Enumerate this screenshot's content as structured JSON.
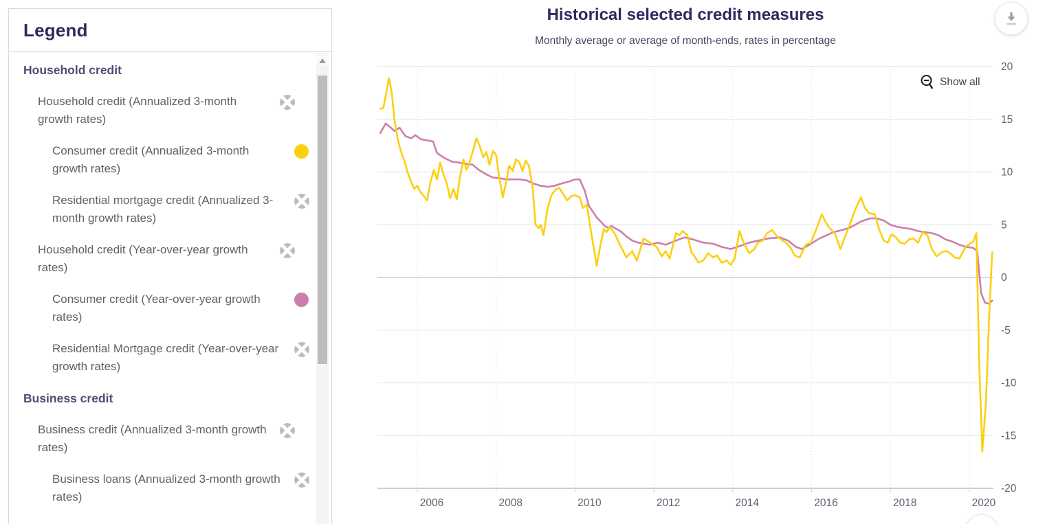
{
  "legend": {
    "title": "Legend",
    "groups": [
      {
        "header": "Household credit",
        "items": [
          {
            "label": "Household credit (Annualized 3-month growth rates)",
            "level": 1,
            "marker": "hidden-series-icon"
          },
          {
            "label": "Consumer credit (Annualized 3-month growth rates)",
            "level": 2,
            "marker": "yellow-dot"
          },
          {
            "label": "Residential mortgage credit (Annualized 3-month growth rates)",
            "level": 2,
            "marker": "hidden-series-icon"
          },
          {
            "label": "Household credit (Year-over-year growth rates)",
            "level": 1,
            "marker": "hidden-series-icon"
          },
          {
            "label": "Consumer credit (Year-over-year growth rates)",
            "level": 2,
            "marker": "pink-dot"
          },
          {
            "label": "Residential Mortgage credit (Year-over-year growth rates)",
            "level": 2,
            "marker": "hidden-series-icon"
          }
        ]
      },
      {
        "header": "Business credit",
        "items": [
          {
            "label": "Business credit (Annualized 3-month growth rates)",
            "level": 1,
            "marker": "hidden-series-icon"
          },
          {
            "label": "Business loans (Annualized 3-month growth rates)",
            "level": 2,
            "marker": "hidden-series-icon"
          }
        ]
      }
    ]
  },
  "chart": {
    "title": "Historical selected credit measures",
    "subtitle": "Monthly average or average of month-ends, rates in percentage",
    "show_all_label": "Show all"
  },
  "colors": {
    "yellow": "#FCD00E",
    "pink": "#CC7FAC",
    "hidden_marker": "#B7BEBE",
    "title_navy": "#2D2A5E",
    "axis_text": "#5A6570",
    "grid": "#E8E8E8",
    "grid_dotted": "#DCDCDC",
    "zero_line": "#C4C4C4",
    "axis_line": "#CFCFCF"
  },
  "chart_data": {
    "type": "line",
    "title": "Historical selected credit measures",
    "subtitle": "Monthly average or average of month-ends, rates in percentage",
    "ylabel": "rates in percentage",
    "x_axis": {
      "range": [
        2004.99,
        2020.62
      ],
      "tick_years": [
        2006,
        2008,
        2010,
        2012,
        2014,
        2016,
        2018,
        2020
      ],
      "grid": "dotted"
    },
    "y_axis": {
      "range": [
        -20,
        20
      ],
      "ticks": [
        20,
        15,
        10,
        5,
        0,
        -5,
        -10,
        -15,
        -20
      ],
      "grid": "solid",
      "labels_side": "right"
    },
    "legend_position": "external-left-panel",
    "series": [
      {
        "name": "Consumer credit (Year-over-year growth rates)",
        "color_key": "pink",
        "points": [
          [
            2005.06,
            13.7
          ],
          [
            2005.2,
            14.6
          ],
          [
            2005.3,
            14.3
          ],
          [
            2005.42,
            13.9
          ],
          [
            2005.55,
            14.2
          ],
          [
            2005.7,
            13.4
          ],
          [
            2005.85,
            13.2
          ],
          [
            2005.95,
            13.5
          ],
          [
            2006.1,
            13.1
          ],
          [
            2006.25,
            13.0
          ],
          [
            2006.4,
            12.9
          ],
          [
            2006.5,
            11.8
          ],
          [
            2006.7,
            11.3
          ],
          [
            2006.87,
            11.0
          ],
          [
            2007.04,
            10.9
          ],
          [
            2007.2,
            10.8
          ],
          [
            2007.4,
            10.7
          ],
          [
            2007.56,
            10.2
          ],
          [
            2007.74,
            9.8
          ],
          [
            2007.9,
            9.5
          ],
          [
            2008.1,
            9.4
          ],
          [
            2008.26,
            9.3
          ],
          [
            2008.45,
            9.3
          ],
          [
            2008.6,
            9.3
          ],
          [
            2008.78,
            9.2
          ],
          [
            2008.95,
            8.9
          ],
          [
            2009.13,
            8.7
          ],
          [
            2009.3,
            8.6
          ],
          [
            2009.48,
            8.7
          ],
          [
            2009.65,
            8.9
          ],
          [
            2009.85,
            9.1
          ],
          [
            2010.0,
            9.3
          ],
          [
            2010.12,
            9.3
          ],
          [
            2010.25,
            8.2
          ],
          [
            2010.35,
            6.8
          ],
          [
            2010.55,
            5.7
          ],
          [
            2010.75,
            4.9
          ],
          [
            2010.85,
            4.7
          ],
          [
            2010.92,
            4.9
          ],
          [
            2011.0,
            4.7
          ],
          [
            2011.15,
            4.4
          ],
          [
            2011.3,
            3.9
          ],
          [
            2011.45,
            3.5
          ],
          [
            2011.6,
            3.3
          ],
          [
            2011.75,
            3.2
          ],
          [
            2011.9,
            3.1
          ],
          [
            2012.1,
            3.3
          ],
          [
            2012.3,
            3.1
          ],
          [
            2012.56,
            3.5
          ],
          [
            2012.78,
            3.8
          ],
          [
            2013.0,
            3.6
          ],
          [
            2013.25,
            3.3
          ],
          [
            2013.5,
            3.2
          ],
          [
            2013.72,
            2.9
          ],
          [
            2013.95,
            2.7
          ],
          [
            2014.2,
            3.0
          ],
          [
            2014.42,
            3.3
          ],
          [
            2014.65,
            3.5
          ],
          [
            2014.9,
            3.7
          ],
          [
            2015.2,
            3.8
          ],
          [
            2015.4,
            3.5
          ],
          [
            2015.6,
            2.9
          ],
          [
            2015.75,
            2.7
          ],
          [
            2015.9,
            3.0
          ],
          [
            2016.2,
            3.7
          ],
          [
            2016.56,
            4.3
          ],
          [
            2016.78,
            4.5
          ],
          [
            2016.96,
            4.7
          ],
          [
            2017.25,
            5.3
          ],
          [
            2017.48,
            5.6
          ],
          [
            2017.66,
            5.6
          ],
          [
            2017.83,
            5.4
          ],
          [
            2018.0,
            5.0
          ],
          [
            2018.17,
            4.8
          ],
          [
            2018.35,
            4.7
          ],
          [
            2018.52,
            4.6
          ],
          [
            2018.7,
            4.4
          ],
          [
            2018.87,
            4.3
          ],
          [
            2019.05,
            4.2
          ],
          [
            2019.22,
            4.0
          ],
          [
            2019.4,
            3.6
          ],
          [
            2019.57,
            3.4
          ],
          [
            2019.75,
            3.1
          ],
          [
            2019.92,
            2.9
          ],
          [
            2020.1,
            2.8
          ],
          [
            2020.2,
            2.5
          ],
          [
            2020.3,
            -1.5
          ],
          [
            2020.4,
            -2.4
          ],
          [
            2020.5,
            -2.5
          ],
          [
            2020.58,
            -2.2
          ]
        ]
      },
      {
        "name": "Consumer credit (Annualized 3-month growth rates)",
        "color_key": "yellow",
        "points": [
          [
            2005.06,
            16.0
          ],
          [
            2005.14,
            16.1
          ],
          [
            2005.28,
            18.9
          ],
          [
            2005.35,
            17.6
          ],
          [
            2005.42,
            15.0
          ],
          [
            2005.5,
            13.2
          ],
          [
            2005.58,
            12.0
          ],
          [
            2005.67,
            11.1
          ],
          [
            2005.75,
            10.0
          ],
          [
            2005.83,
            9.2
          ],
          [
            2005.92,
            8.4
          ],
          [
            2006.0,
            8.7
          ],
          [
            2006.08,
            8.1
          ],
          [
            2006.17,
            7.7
          ],
          [
            2006.25,
            7.3
          ],
          [
            2006.33,
            9.0
          ],
          [
            2006.42,
            10.2
          ],
          [
            2006.5,
            9.3
          ],
          [
            2006.58,
            10.9
          ],
          [
            2006.67,
            9.7
          ],
          [
            2006.75,
            8.9
          ],
          [
            2006.83,
            7.5
          ],
          [
            2006.92,
            8.4
          ],
          [
            2007.0,
            7.4
          ],
          [
            2007.08,
            9.5
          ],
          [
            2007.17,
            11.2
          ],
          [
            2007.25,
            10.2
          ],
          [
            2007.33,
            11.0
          ],
          [
            2007.42,
            12.1
          ],
          [
            2007.5,
            13.2
          ],
          [
            2007.58,
            12.5
          ],
          [
            2007.67,
            11.4
          ],
          [
            2007.75,
            11.9
          ],
          [
            2007.83,
            10.7
          ],
          [
            2007.92,
            12.0
          ],
          [
            2008.0,
            11.6
          ],
          [
            2008.08,
            9.4
          ],
          [
            2008.17,
            7.6
          ],
          [
            2008.25,
            9.0
          ],
          [
            2008.33,
            10.6
          ],
          [
            2008.42,
            10.1
          ],
          [
            2008.5,
            11.2
          ],
          [
            2008.58,
            11.0
          ],
          [
            2008.67,
            10.1
          ],
          [
            2008.75,
            11.1
          ],
          [
            2008.83,
            10.6
          ],
          [
            2008.92,
            8.7
          ],
          [
            2009.0,
            5.0
          ],
          [
            2009.08,
            4.7
          ],
          [
            2009.13,
            5.0
          ],
          [
            2009.2,
            4.0
          ],
          [
            2009.3,
            6.5
          ],
          [
            2009.4,
            7.8
          ],
          [
            2009.5,
            8.3
          ],
          [
            2009.6,
            8.5
          ],
          [
            2009.7,
            7.9
          ],
          [
            2009.8,
            7.3
          ],
          [
            2009.9,
            7.7
          ],
          [
            2010.0,
            7.8
          ],
          [
            2010.12,
            7.6
          ],
          [
            2010.2,
            6.6
          ],
          [
            2010.3,
            6.9
          ],
          [
            2010.4,
            4.5
          ],
          [
            2010.55,
            1.1
          ],
          [
            2010.65,
            3.2
          ],
          [
            2010.73,
            4.6
          ],
          [
            2010.8,
            4.3
          ],
          [
            2010.88,
            4.8
          ],
          [
            2011.0,
            4.2
          ],
          [
            2011.1,
            3.4
          ],
          [
            2011.3,
            1.9
          ],
          [
            2011.45,
            2.5
          ],
          [
            2011.57,
            1.6
          ],
          [
            2011.74,
            3.7
          ],
          [
            2011.9,
            3.3
          ],
          [
            2012.07,
            2.9
          ],
          [
            2012.2,
            2.0
          ],
          [
            2012.3,
            2.5
          ],
          [
            2012.4,
            1.8
          ],
          [
            2012.56,
            4.2
          ],
          [
            2012.65,
            4.0
          ],
          [
            2012.73,
            4.4
          ],
          [
            2012.85,
            4.0
          ],
          [
            2012.95,
            2.4
          ],
          [
            2013.03,
            2.0
          ],
          [
            2013.13,
            1.4
          ],
          [
            2013.25,
            1.6
          ],
          [
            2013.38,
            2.3
          ],
          [
            2013.5,
            1.9
          ],
          [
            2013.6,
            2.1
          ],
          [
            2013.72,
            1.4
          ],
          [
            2013.85,
            1.6
          ],
          [
            2013.95,
            1.2
          ],
          [
            2014.05,
            1.8
          ],
          [
            2014.17,
            4.4
          ],
          [
            2014.3,
            3.1
          ],
          [
            2014.42,
            2.3
          ],
          [
            2014.55,
            2.7
          ],
          [
            2014.64,
            3.3
          ],
          [
            2014.76,
            3.5
          ],
          [
            2014.87,
            4.2
          ],
          [
            2015.0,
            4.5
          ],
          [
            2015.1,
            4.0
          ],
          [
            2015.22,
            3.6
          ],
          [
            2015.35,
            3.3
          ],
          [
            2015.45,
            2.9
          ],
          [
            2015.57,
            2.1
          ],
          [
            2015.7,
            1.9
          ],
          [
            2015.85,
            3.1
          ],
          [
            2015.98,
            3.3
          ],
          [
            2016.12,
            4.6
          ],
          [
            2016.26,
            6.0
          ],
          [
            2016.35,
            5.3
          ],
          [
            2016.43,
            4.8
          ],
          [
            2016.6,
            4.1
          ],
          [
            2016.73,
            2.7
          ],
          [
            2016.85,
            3.9
          ],
          [
            2016.96,
            4.9
          ],
          [
            2017.1,
            6.4
          ],
          [
            2017.25,
            7.6
          ],
          [
            2017.35,
            6.6
          ],
          [
            2017.46,
            6.1
          ],
          [
            2017.6,
            6.0
          ],
          [
            2017.72,
            4.5
          ],
          [
            2017.83,
            3.5
          ],
          [
            2017.93,
            3.3
          ],
          [
            2018.03,
            4.1
          ],
          [
            2018.14,
            3.8
          ],
          [
            2018.24,
            3.3
          ],
          [
            2018.36,
            3.2
          ],
          [
            2018.47,
            3.6
          ],
          [
            2018.58,
            3.7
          ],
          [
            2018.7,
            3.3
          ],
          [
            2018.82,
            4.3
          ],
          [
            2018.94,
            4.0
          ],
          [
            2019.05,
            2.7
          ],
          [
            2019.17,
            2.0
          ],
          [
            2019.3,
            2.4
          ],
          [
            2019.4,
            2.5
          ],
          [
            2019.48,
            2.4
          ],
          [
            2019.63,
            1.9
          ],
          [
            2019.75,
            1.8
          ],
          [
            2019.9,
            2.9
          ],
          [
            2019.98,
            3.1
          ],
          [
            2020.1,
            3.4
          ],
          [
            2020.18,
            4.2
          ],
          [
            2020.25,
            -8.0
          ],
          [
            2020.33,
            -16.5
          ],
          [
            2020.42,
            -12.0
          ],
          [
            2020.5,
            -4.0
          ],
          [
            2020.58,
            2.4
          ]
        ]
      }
    ]
  }
}
